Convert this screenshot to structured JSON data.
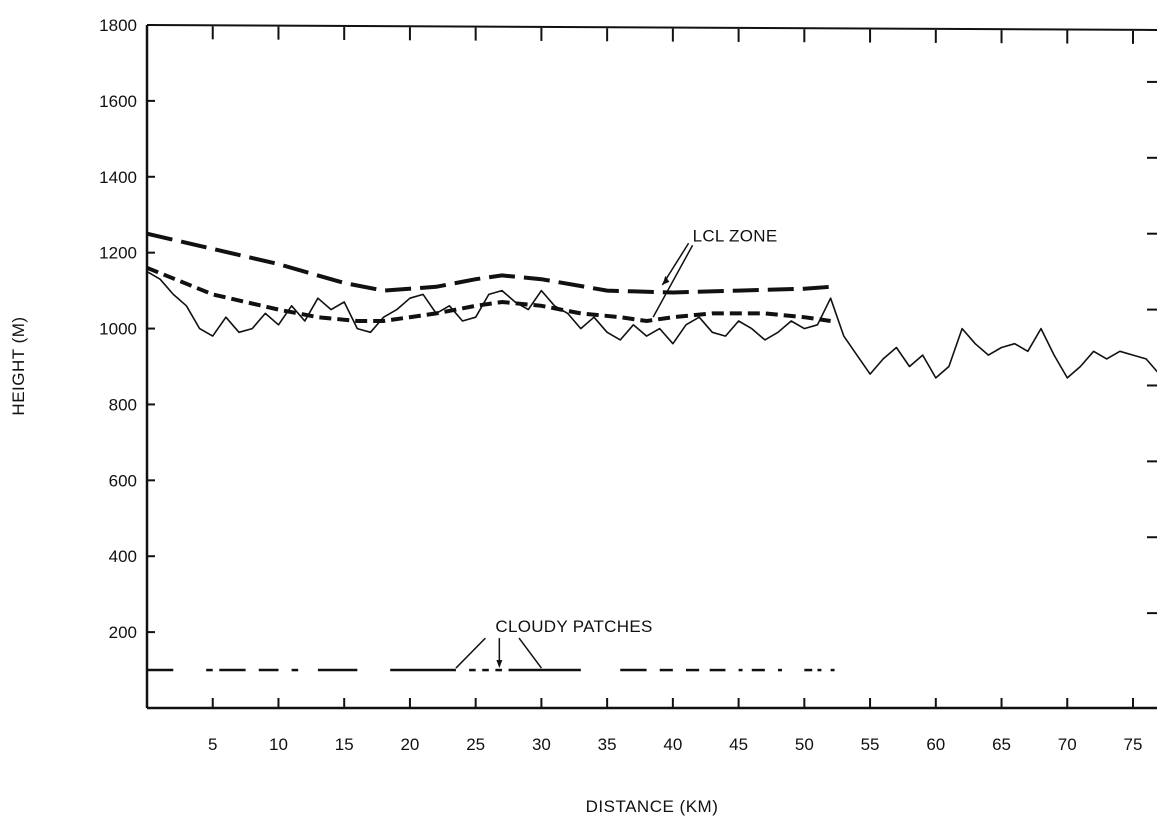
{
  "chart_data": {
    "type": "line",
    "xlabel": "DISTANCE (KM)",
    "ylabel": "HEIGHT (M)",
    "xlim": [
      0,
      77
    ],
    "ylim": [
      0,
      1800
    ],
    "x_ticks": [
      5,
      10,
      15,
      20,
      25,
      30,
      35,
      40,
      45,
      50,
      55,
      60,
      65,
      70,
      75
    ],
    "y_ticks": [
      200,
      400,
      600,
      800,
      1000,
      1200,
      1400,
      1600,
      1800
    ],
    "grid": false,
    "series": [
      {
        "style": "solid-noisy",
        "x": [
          0,
          1,
          2,
          3,
          4,
          5,
          6,
          7,
          8,
          9,
          10,
          11,
          12,
          13,
          14,
          15,
          16,
          17,
          18,
          19,
          20,
          21,
          22,
          23,
          24,
          25,
          26,
          27,
          28,
          29,
          30,
          31,
          32,
          33,
          34,
          35,
          36,
          37,
          38,
          39,
          40,
          41,
          42,
          43,
          44,
          45,
          46,
          47,
          48,
          49,
          50,
          51,
          52,
          53,
          54,
          55,
          56,
          57,
          58,
          59,
          60,
          61,
          62,
          63,
          64,
          65,
          66,
          67,
          68,
          69,
          70,
          71,
          72,
          73,
          74,
          75,
          76,
          77
        ],
        "y": [
          1150,
          1130,
          1090,
          1060,
          1000,
          980,
          1030,
          990,
          1000,
          1040,
          1010,
          1060,
          1020,
          1080,
          1050,
          1070,
          1000,
          990,
          1030,
          1050,
          1080,
          1090,
          1040,
          1060,
          1020,
          1030,
          1090,
          1100,
          1070,
          1050,
          1100,
          1060,
          1040,
          1000,
          1030,
          990,
          970,
          1010,
          980,
          1000,
          960,
          1010,
          1030,
          990,
          980,
          1020,
          1000,
          970,
          990,
          1020,
          1000,
          1010,
          1080,
          980,
          930,
          880,
          920,
          950,
          900,
          930,
          870,
          900,
          1000,
          960,
          930,
          950,
          960,
          940,
          1000,
          930,
          870,
          900,
          940,
          920,
          940,
          930,
          920,
          880
        ]
      },
      {
        "style": "long-dash",
        "x": [
          0,
          5,
          10,
          15,
          18,
          22,
          25,
          27,
          30,
          35,
          40,
          45,
          50,
          52
        ],
        "y": [
          1250,
          1210,
          1170,
          1120,
          1100,
          1110,
          1130,
          1140,
          1130,
          1100,
          1095,
          1100,
          1105,
          1110
        ]
      },
      {
        "style": "short-dash",
        "x": [
          0,
          5,
          10,
          13,
          16,
          18,
          22,
          25,
          27,
          30,
          33,
          36,
          38,
          40,
          43,
          47,
          50,
          52
        ],
        "y": [
          1160,
          1090,
          1050,
          1030,
          1020,
          1020,
          1040,
          1060,
          1070,
          1060,
          1040,
          1030,
          1020,
          1030,
          1040,
          1040,
          1030,
          1020
        ]
      }
    ],
    "cloud_bar": {
      "y": 100,
      "segments": [
        [
          0,
          2
        ],
        [
          4.5,
          5
        ],
        [
          5.5,
          7.5
        ],
        [
          8.5,
          10
        ],
        [
          11,
          11.5
        ],
        [
          13,
          16
        ],
        [
          18.5,
          23.5
        ],
        [
          24.5,
          25
        ],
        [
          25.5,
          26
        ],
        [
          26.5,
          27
        ],
        [
          27.5,
          33
        ],
        [
          36,
          38
        ],
        [
          39,
          40
        ],
        [
          41,
          42
        ],
        [
          42.8,
          44
        ],
        [
          45,
          45.3
        ],
        [
          46,
          47
        ],
        [
          48,
          48.3
        ],
        [
          50,
          50.6
        ],
        [
          51,
          51.3
        ],
        [
          52,
          52.3
        ]
      ]
    },
    "annotations": [
      {
        "text": "LCL ZONE",
        "x": 41.5,
        "y": 1230
      },
      {
        "text": "CLOUDY PATCHES",
        "x": 26.5,
        "y": 200
      }
    ]
  }
}
